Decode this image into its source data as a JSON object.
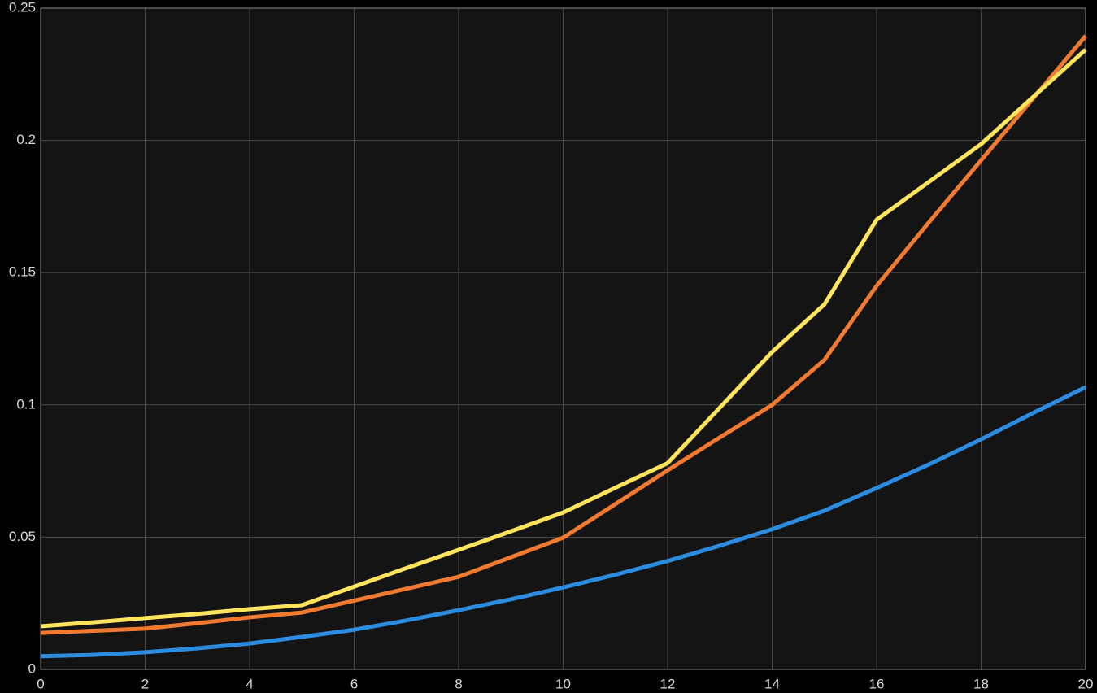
{
  "chart_data": {
    "type": "line",
    "x": [
      0,
      1,
      2,
      3,
      4,
      5,
      6,
      7,
      8,
      9,
      10,
      11,
      12,
      13,
      14,
      15,
      16,
      17,
      18,
      19,
      20
    ],
    "series": [
      {
        "color": "#2b8ce0",
        "values": [
          0.005,
          0.0055,
          0.0065,
          0.008,
          0.0098,
          0.0123,
          0.015,
          0.0185,
          0.0224,
          0.0265,
          0.031,
          0.0358,
          0.041,
          0.0468,
          0.053,
          0.06,
          0.0686,
          0.0775,
          0.087,
          0.097,
          0.1067
        ]
      },
      {
        "color": "#f07a30",
        "values": [
          0.0138,
          0.0146,
          0.0154,
          0.0175,
          0.0197,
          0.0215,
          0.026,
          0.0305,
          0.035,
          0.0424,
          0.0498,
          0.0625,
          0.0753,
          0.0877,
          0.1,
          0.117,
          0.145,
          0.169,
          0.1925,
          0.216,
          0.2395
        ]
      },
      {
        "color": "#ffe45c",
        "values": [
          0.0163,
          0.0178,
          0.0194,
          0.021,
          0.0228,
          0.0243,
          0.0313,
          0.0383,
          0.0452,
          0.0522,
          0.0593,
          0.0687,
          0.078,
          0.099,
          0.12,
          0.138,
          0.17,
          0.1843,
          0.1986,
          0.2165,
          0.2343
        ]
      }
    ],
    "xlim": [
      0,
      20
    ],
    "xticks": [
      0,
      2,
      4,
      6,
      8,
      10,
      12,
      14,
      16,
      18,
      20
    ],
    "ylim": [
      0,
      0.25
    ],
    "yticks": [
      0,
      0.05,
      0.1,
      0.15,
      0.2,
      0.25
    ],
    "grid": true
  }
}
